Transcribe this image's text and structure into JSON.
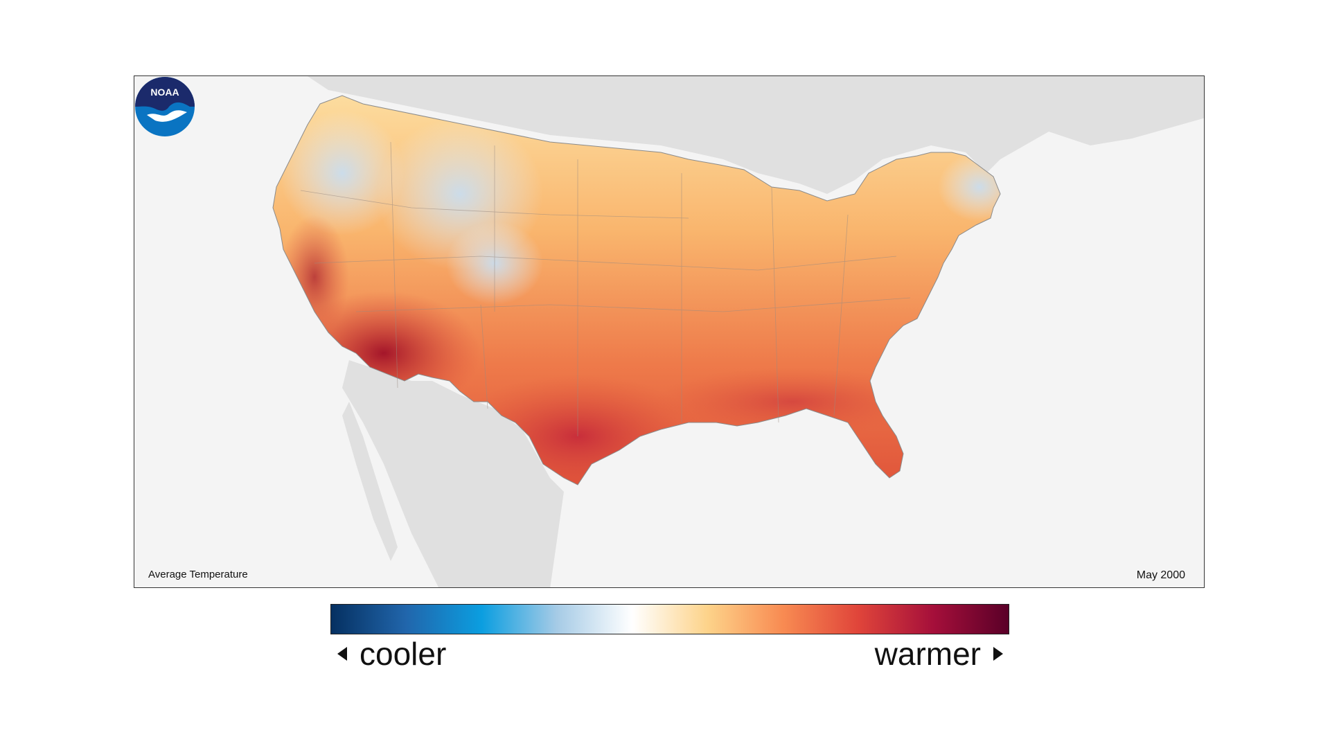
{
  "map": {
    "caption": "Average Temperature",
    "date": "May 2000",
    "logo_text": "NOAA",
    "colors": {
      "ocean": "#f4f4f4",
      "neighbor_land": "#e0e0e0",
      "cool": "#cfe0f0",
      "mild": "#fde4b0",
      "warm": "#f5a05a",
      "hot": "#e0553a",
      "hottest": "#b01c30"
    }
  },
  "legend": {
    "cooler_label": "cooler",
    "warmer_label": "warmer",
    "gradient_colors": [
      "#053061",
      "#2166ac",
      "#0b9ee0",
      "#a6cbe6",
      "#ffffff",
      "#fdd38a",
      "#f88b52",
      "#e0453a",
      "#a50f3a",
      "#5a0028"
    ]
  }
}
